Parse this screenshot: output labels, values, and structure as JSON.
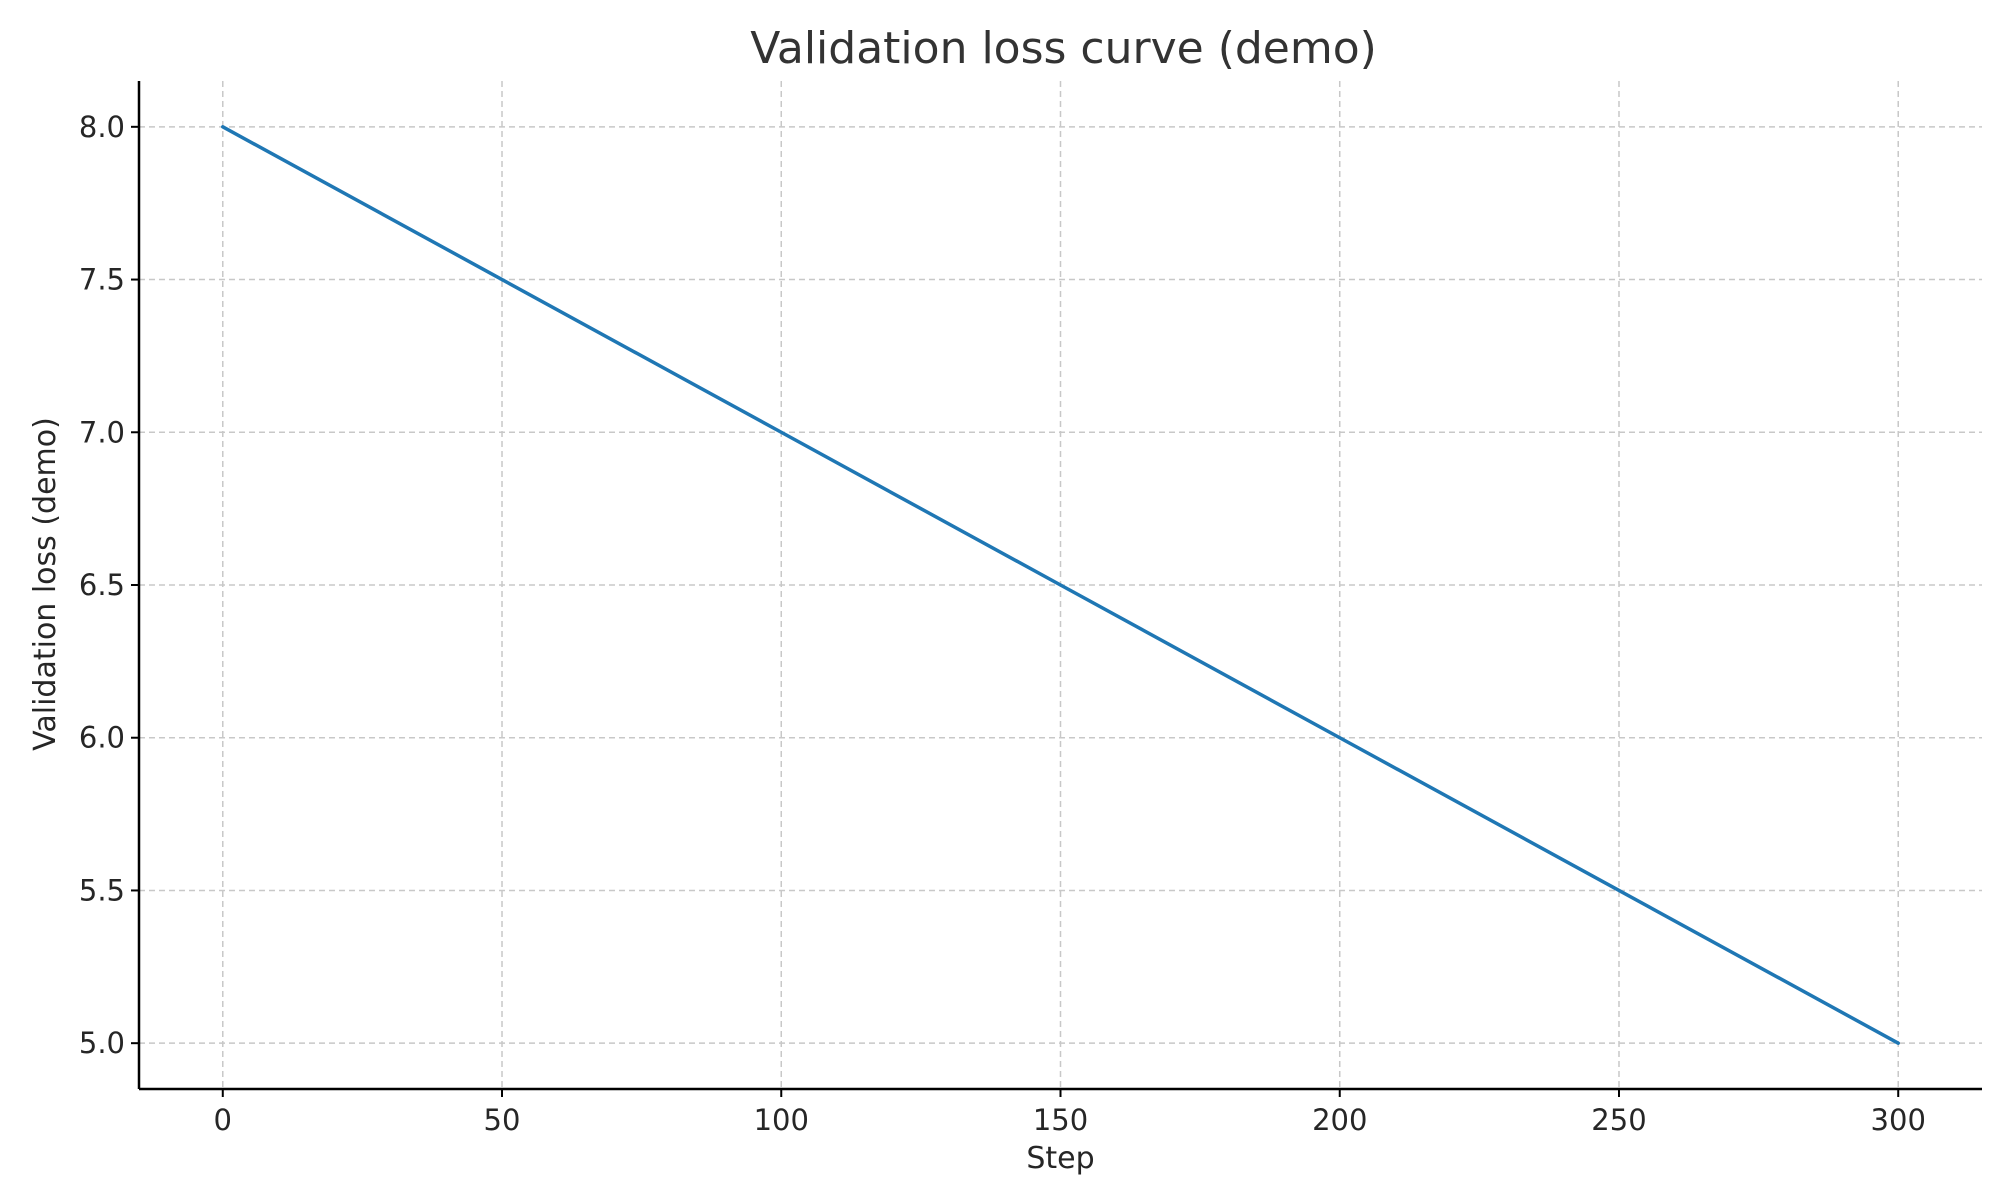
{
  "chart_data": {
    "type": "line",
    "title": "Validation loss curve (demo)",
    "xlabel": "Step",
    "ylabel": "Validation loss (demo)",
    "xlim": [
      -15,
      315
    ],
    "ylim": [
      4.85,
      8.15
    ],
    "x_ticks": [
      0,
      50,
      100,
      150,
      200,
      250,
      300
    ],
    "x_tick_labels": [
      "0",
      "50",
      "100",
      "150",
      "200",
      "250",
      "300"
    ],
    "y_ticks": [
      5.0,
      5.5,
      6.0,
      6.5,
      7.0,
      7.5,
      8.0
    ],
    "y_tick_labels": [
      "5.0",
      "5.5",
      "6.0",
      "6.5",
      "7.0",
      "7.5",
      "8.0"
    ],
    "grid": true,
    "series": [
      {
        "color": "#1f77b4",
        "x": [
          0,
          50,
          100,
          150,
          200,
          250,
          300
        ],
        "y": [
          8.0,
          7.5,
          7.0,
          6.5,
          6.0,
          5.5,
          5.0
        ]
      }
    ]
  }
}
